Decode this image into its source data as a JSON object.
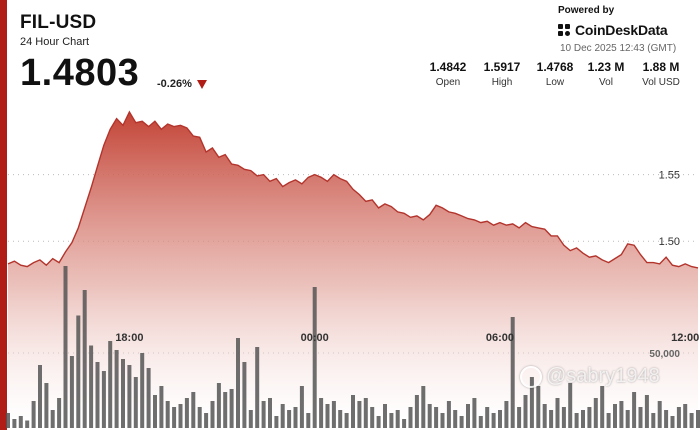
{
  "header": {
    "title": "FIL-USD",
    "subtitle": "24 Hour Chart",
    "price": "1.4803",
    "change": "-0.26%"
  },
  "branding": {
    "powered_by": "Powered by",
    "name": "CoinDeskData",
    "timestamp": "10 Dec 2025 12:43 (GMT)"
  },
  "stats": [
    {
      "value": "1.4842",
      "label": "Open"
    },
    {
      "value": "1.5917",
      "label": "High"
    },
    {
      "value": "1.4768",
      "label": "Low"
    },
    {
      "value": "1.23 M",
      "label": "Vol"
    },
    {
      "value": "1.88 M",
      "label": "Vol USD"
    }
  ],
  "watermark": "@sabry1948",
  "colors": {
    "accent": "#b01c16",
    "line": "#b3342c",
    "volume": "#555555"
  },
  "chart_data": {
    "type": "area",
    "x_ticks": [
      "18:00",
      "00:00",
      "06:00",
      "12:00"
    ],
    "x_tick_index": [
      19,
      48,
      77,
      106
    ],
    "y_ticks": [
      1.5,
      1.55
    ],
    "y_tick_labels": [
      "1.50",
      "1.55"
    ],
    "ylim": [
      1.4604,
      1.606
    ],
    "volume_tick_label": "50,000",
    "volume_tick_value": 50000,
    "volume_max": 120000,
    "price": [
      1.483,
      1.485,
      1.482,
      1.481,
      1.484,
      1.486,
      1.482,
      1.487,
      1.484,
      1.492,
      1.499,
      1.51,
      1.525,
      1.54,
      1.556,
      1.572,
      1.584,
      1.592,
      1.587,
      1.597,
      1.589,
      1.59,
      1.586,
      1.59,
      1.584,
      1.588,
      1.586,
      1.587,
      1.585,
      1.579,
      1.578,
      1.567,
      1.57,
      1.563,
      1.565,
      1.558,
      1.557,
      1.554,
      1.553,
      1.549,
      1.55,
      1.545,
      1.547,
      1.541,
      1.544,
      1.546,
      1.543,
      1.548,
      1.55,
      1.548,
      1.545,
      1.55,
      1.547,
      1.545,
      1.539,
      1.535,
      1.53,
      1.531,
      1.525,
      1.528,
      1.526,
      1.522,
      1.521,
      1.518,
      1.519,
      1.516,
      1.52,
      1.527,
      1.525,
      1.522,
      1.521,
      1.519,
      1.517,
      1.516,
      1.514,
      1.515,
      1.512,
      1.514,
      1.512,
      1.513,
      1.51,
      1.514,
      1.511,
      1.51,
      1.509,
      1.504,
      1.504,
      1.497,
      1.493,
      1.495,
      1.491,
      1.488,
      1.489,
      1.486,
      1.484,
      1.487,
      1.49,
      1.498,
      1.497,
      1.49,
      1.484,
      1.484,
      1.483,
      1.488,
      1.482,
      1.481,
      1.483,
      1.481,
      1.48
    ],
    "volume": [
      10000,
      6000,
      8000,
      5000,
      18000,
      42000,
      30000,
      12000,
      20000,
      108000,
      48000,
      75000,
      92000,
      55000,
      44000,
      38000,
      58000,
      52000,
      46000,
      42000,
      34000,
      50000,
      40000,
      22000,
      28000,
      18000,
      14000,
      16000,
      20000,
      24000,
      14000,
      10000,
      18000,
      30000,
      24000,
      26000,
      60000,
      44000,
      12000,
      54000,
      18000,
      20000,
      8000,
      16000,
      12000,
      14000,
      28000,
      10000,
      94000,
      20000,
      16000,
      18000,
      12000,
      10000,
      22000,
      18000,
      20000,
      14000,
      8000,
      16000,
      10000,
      12000,
      6000,
      14000,
      22000,
      28000,
      16000,
      14000,
      10000,
      18000,
      12000,
      8000,
      16000,
      20000,
      8000,
      14000,
      10000,
      12000,
      18000,
      74000,
      14000,
      22000,
      34000,
      28000,
      16000,
      12000,
      20000,
      14000,
      30000,
      10000,
      12000,
      14000,
      20000,
      28000,
      10000,
      16000,
      18000,
      12000,
      24000,
      14000,
      22000,
      10000,
      18000,
      12000,
      8000,
      14000,
      16000,
      10000,
      12000
    ]
  }
}
